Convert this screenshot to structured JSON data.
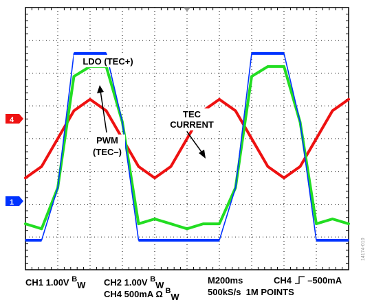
{
  "chart_data": {
    "type": "line",
    "title": "",
    "grid": true,
    "time_per_div_ms": 200,
    "x_divisions": 10,
    "y_divisions": 8,
    "x": [
      0,
      100,
      200,
      300,
      400,
      500,
      600,
      700,
      800,
      900,
      1000,
      1100,
      1200,
      1300,
      1400,
      1500,
      1600,
      1700,
      1800,
      1900,
      2000
    ],
    "series": [
      {
        "name": "LDO (TEC+)",
        "channel": "CH1",
        "color": "#0033ff",
        "scale": "1.00V",
        "values_div": [
          -3.1,
          -3.1,
          -1.5,
          2.6,
          2.6,
          2.6,
          0.5,
          -3.1,
          -3.1,
          -3.1,
          -3.1,
          -3.1,
          -3.1,
          -1.5,
          2.6,
          2.6,
          2.6,
          0.5,
          -3.1,
          -3.1,
          -3.1
        ]
      },
      {
        "name": "PWM (TEC–)",
        "channel": "CH2",
        "color": "#22dd22",
        "scale": "1.00V",
        "values_div": [
          -2.6,
          -2.75,
          -1.5,
          1.9,
          2.2,
          2.2,
          0.5,
          -2.6,
          -2.45,
          -2.6,
          -2.75,
          -2.6,
          -2.6,
          -1.5,
          1.9,
          2.2,
          2.2,
          0.5,
          -2.6,
          -2.45,
          -2.6
        ]
      },
      {
        "name": "TEC CURRENT",
        "channel": "CH4",
        "color": "#ee1111",
        "scale": "500mA",
        "values_div": [
          -1.2,
          -0.85,
          0.0,
          0.85,
          1.2,
          0.85,
          0.0,
          -0.85,
          -1.2,
          -0.85,
          0.0,
          0.85,
          1.2,
          0.85,
          0.0,
          -0.85,
          -1.2,
          -0.85,
          0.0,
          0.85,
          1.2
        ]
      }
    ],
    "annotations": [
      "LDO (TEC+)",
      "PWM\n(TEC–)",
      "TEC\nCURRENT"
    ],
    "ground_markers": [
      {
        "label": "4",
        "color": "#ee1111"
      },
      {
        "label": "1",
        "color": "#0033ff"
      }
    ]
  },
  "labels": {
    "ldo": "LDO (TEC+)",
    "pwm_line1": "PWM",
    "pwm_line2": "(TEC–)",
    "tec_line1": "TEC",
    "tec_line2": "CURRENT",
    "marker4": "4",
    "marker1": "1"
  },
  "footer": {
    "ch1": "CH1 1.00V",
    "ch2": "CH2 1.00V",
    "bw": "B",
    "bw_sub": "W",
    "timebase": "M200ms",
    "trigger_channel": "CH4",
    "trigger_glyph": "⸍↑",
    "trigger_level": "–500mA",
    "ch4": "CH4 500mA Ω",
    "sample_rate": "500kS/s",
    "points": "1M POINTS"
  },
  "figure_number": "14174-010"
}
